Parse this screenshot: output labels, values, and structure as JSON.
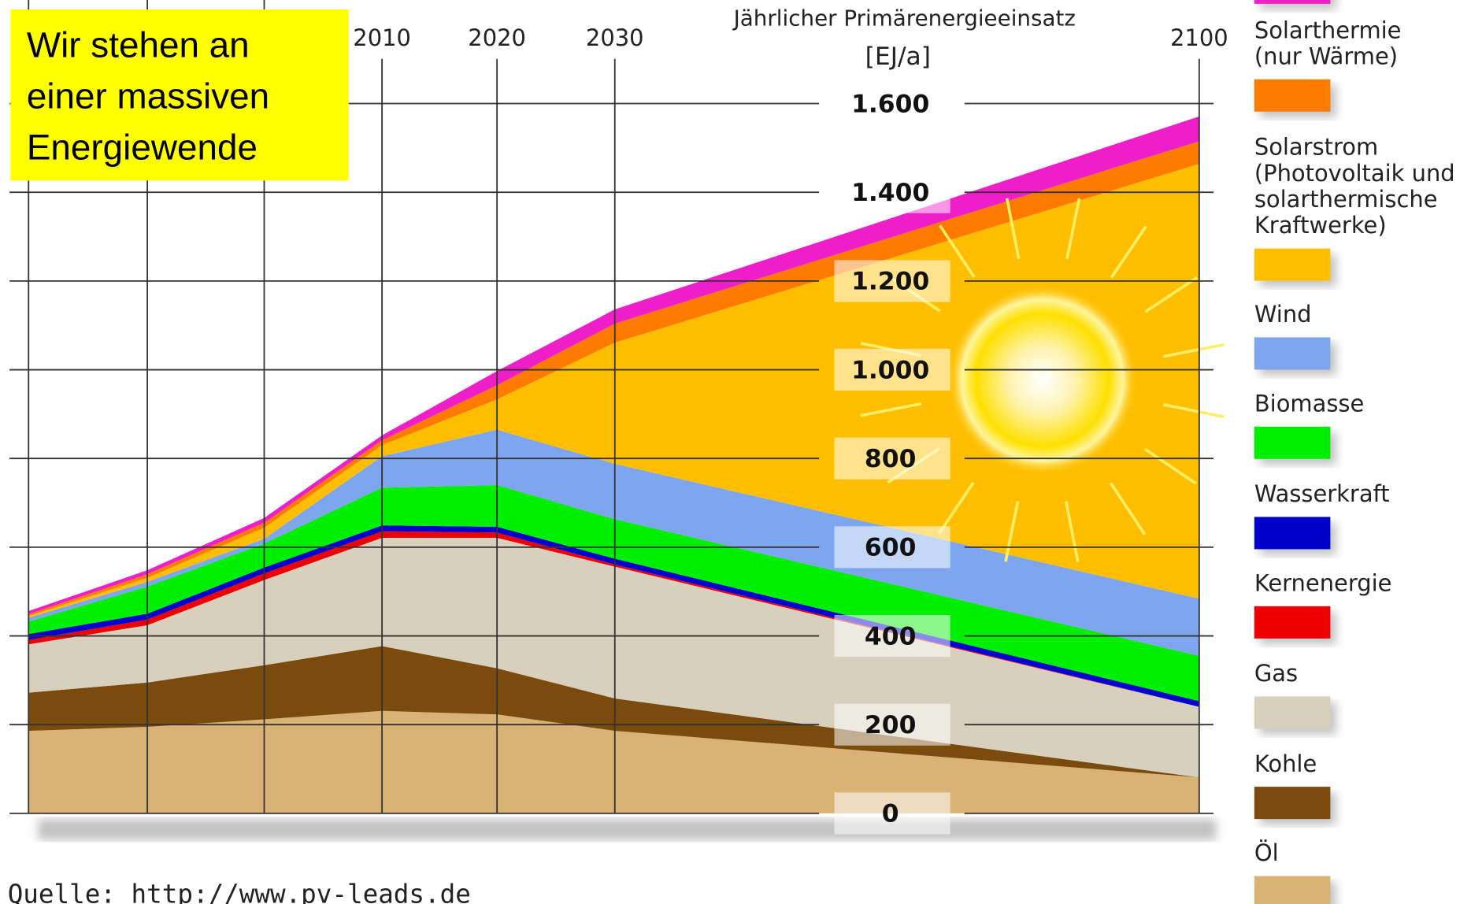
{
  "chart_data": {
    "type": "stacked_area",
    "title": "Jährlicher Primärenergieeinsatz",
    "unit": "[EJ/a]",
    "annotation": [
      "Wir stehen an",
      "einer massiven",
      "Energiewende"
    ],
    "source": "Quelle: http://www.pv-leads.de",
    "categories": [
      null,
      null,
      null,
      "2010",
      "2020",
      "2030",
      "2100"
    ],
    "ylim": [
      0,
      1600
    ],
    "yticks": [
      0,
      200,
      400,
      600,
      800,
      {
        "value": 1000,
        "label": "1.000"
      },
      {
        "value": 1200,
        "label": "1.200"
      },
      {
        "value": 1400,
        "label": "1.400"
      },
      {
        "value": 1600,
        "label": "1.600"
      }
    ],
    "grid": true,
    "legend": "right",
    "series": [
      {
        "name": "Öl",
        "color": "#d9b275",
        "values": [
          186,
          195,
          212,
          231,
          223,
          186,
          81
        ]
      },
      {
        "name": "Kohle",
        "color": "#7a4b0c",
        "values": [
          86,
          100,
          122,
          146,
          104,
          73,
          0
        ]
      },
      {
        "name": "Gas",
        "color": "#d8d0bc",
        "values": [
          109,
          129,
          192,
          244,
          294,
          297,
          159
        ]
      },
      {
        "name": "Kernenergie",
        "color": "#ee0000",
        "values": [
          10,
          13,
          15,
          15,
          12,
          5,
          0
        ]
      },
      {
        "name": "Wasserkraft",
        "color": "#0000cc",
        "values": [
          13,
          13,
          13,
          13,
          13,
          13,
          13
        ]
      },
      {
        "name": "Biomasse",
        "color": "#00ee00",
        "values": [
          28,
          61,
          54,
          85,
          94,
          89,
          102
        ]
      },
      {
        "name": "Wind",
        "color": "#7ea6ee",
        "values": [
          9,
          11,
          11,
          71,
          125,
          125,
          129
        ]
      },
      {
        "name": "Solarstrom\n(Photovoltaik und\nsolarthermische\nKraftwerke)",
        "color": "#ffbf00",
        "values": [
          4,
          9,
          25,
          25,
          68,
          273,
          980
        ]
      },
      {
        "name": "Solarthermie\n(nur Wärme)",
        "color": "#ff7b00",
        "values": [
          4,
          8,
          11,
          11,
          32,
          43,
          51
        ]
      },
      {
        "name": null,
        "color": "#ee1ec8",
        "values": [
          7,
          9,
          11,
          11,
          32,
          32,
          56
        ]
      }
    ]
  }
}
